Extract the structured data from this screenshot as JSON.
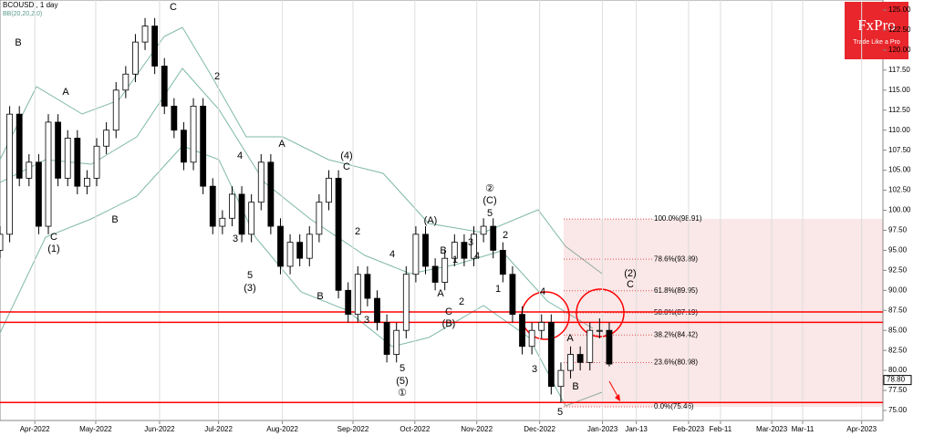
{
  "chart_data": {
    "type": "candlestick",
    "title": "BCOUSD , 1 day",
    "subtitle": "BB(20,20,2.0)",
    "brand": "FxPro",
    "tagline": "Trade Like a Pro",
    "x": [
      0,
      1,
      2,
      3,
      4,
      5,
      6,
      7,
      8,
      9,
      10,
      11,
      12,
      13,
      14,
      15,
      16,
      17,
      18,
      19,
      20,
      21,
      22,
      23,
      24,
      25,
      26,
      27,
      28,
      29,
      30,
      31,
      32,
      33,
      34,
      35,
      36,
      37,
      38,
      39,
      40,
      41,
      42,
      43,
      44,
      45,
      46,
      47,
      48,
      49,
      50,
      51,
      52,
      53,
      54,
      55,
      56,
      57,
      58,
      59,
      60,
      61,
      62,
      63
    ],
    "open": [
      95,
      97,
      112,
      104,
      106,
      98,
      111,
      104,
      109,
      103,
      104,
      108,
      110,
      115,
      117,
      121,
      123,
      118,
      113,
      110,
      106,
      113,
      103,
      98,
      99,
      102,
      97,
      101,
      106,
      98,
      93,
      96,
      94,
      97,
      101,
      104,
      90,
      87,
      92,
      89,
      86,
      82,
      85,
      92,
      97,
      93,
      91,
      94,
      96,
      94,
      97,
      98,
      95,
      92,
      87,
      83,
      85,
      86,
      78,
      80,
      82,
      81,
      85,
      85
    ],
    "high": [
      98,
      113,
      113,
      107,
      107,
      112,
      112,
      110,
      110,
      105,
      109,
      111,
      116,
      118,
      122,
      124,
      124,
      119,
      114,
      111,
      114,
      114,
      104,
      100,
      103,
      103,
      102,
      107,
      107,
      99,
      97,
      97,
      98,
      102,
      105,
      105,
      91,
      93,
      93,
      90,
      87,
      86,
      93,
      98,
      98,
      94,
      95,
      97,
      97,
      98,
      99,
      99,
      96,
      93,
      88,
      86,
      87,
      87,
      81,
      83,
      83,
      86,
      86.5,
      86
    ],
    "low": [
      94,
      96,
      103,
      103,
      97,
      97,
      103,
      103,
      102,
      102,
      103,
      107,
      109,
      114,
      116,
      120,
      117,
      112,
      109,
      105,
      105,
      102,
      97,
      97,
      98,
      96,
      96,
      100,
      97,
      92,
      92,
      93,
      93,
      96,
      100,
      89,
      86,
      86,
      88,
      85,
      81,
      81,
      84,
      91,
      92,
      90,
      90,
      93,
      93,
      93,
      96,
      94,
      91,
      86,
      82,
      82,
      84,
      77,
      76,
      79,
      80,
      80,
      84,
      80.5
    ],
    "close": [
      97,
      112,
      104,
      106,
      98,
      111,
      104,
      109,
      103,
      104,
      108,
      110,
      115,
      117,
      121,
      123,
      118,
      113,
      110,
      106,
      113,
      103,
      98,
      99,
      102,
      97,
      101,
      106,
      98,
      93,
      96,
      94,
      97,
      101,
      104,
      90,
      87,
      92,
      89,
      86,
      82,
      85,
      92,
      97,
      93,
      91,
      94,
      96,
      94,
      97,
      98,
      95,
      92,
      87,
      83,
      85,
      86,
      78,
      80,
      82,
      81,
      85,
      85,
      80.8
    ],
    "up_color": "#ffffff",
    "down_color": "#000000",
    "xlim": [
      0,
      91.3
    ],
    "xticks": [
      {
        "value": 3.6,
        "label": "Apr-2022"
      },
      {
        "value": 9.9,
        "label": "May-2022"
      },
      {
        "value": 16.5,
        "label": "Jun-2022"
      },
      {
        "value": 22.6,
        "label": "Jul-2022"
      },
      {
        "value": 29.2,
        "label": "Aug-2022"
      },
      {
        "value": 36.5,
        "label": "Sep-2022"
      },
      {
        "value": 42.9,
        "label": "Oct-2022"
      },
      {
        "value": 49.3,
        "label": "Nov-2022"
      },
      {
        "value": 55.8,
        "label": "Dec-2022"
      },
      {
        "value": 62.3,
        "label": "Jan-2023"
      },
      {
        "value": 65.8,
        "label": "Jan-13"
      },
      {
        "value": 71.2,
        "label": "Feb-2023"
      },
      {
        "value": 74.5,
        "label": "Feb-11"
      },
      {
        "value": 79.8,
        "label": "Mar-2023"
      },
      {
        "value": 83,
        "label": "Mar-11"
      },
      {
        "value": 89.1,
        "label": "Apr-2023"
      }
    ],
    "ylim": [
      75,
      125
    ],
    "yticks": [
      {
        "value": 125,
        "label": "125.00"
      },
      {
        "value": 122.5,
        "label": "122.50"
      },
      {
        "value": 120,
        "label": "120.00"
      },
      {
        "value": 117.5,
        "label": "117.50"
      },
      {
        "value": 115,
        "label": "115.00"
      },
      {
        "value": 112.5,
        "label": "112.50"
      },
      {
        "value": 110,
        "label": "110.00"
      },
      {
        "value": 107.5,
        "label": "107.50"
      },
      {
        "value": 105,
        "label": "105.00"
      },
      {
        "value": 102.5,
        "label": "102.50"
      },
      {
        "value": 100,
        "label": "100.00"
      },
      {
        "value": 97.5,
        "label": "97.50"
      },
      {
        "value": 95,
        "label": "95.00"
      },
      {
        "value": 92.5,
        "label": "92.50"
      },
      {
        "value": 90,
        "label": "90.00"
      },
      {
        "value": 87.5,
        "label": "87.50"
      },
      {
        "value": 85,
        "label": "85.00"
      },
      {
        "value": 82.5,
        "label": "82.50"
      },
      {
        "value": 80,
        "label": "80.00"
      },
      {
        "value": 77.5,
        "label": "77.50"
      },
      {
        "value": 75,
        "label": "75.00"
      }
    ],
    "last_price": {
      "value": 78.8,
      "label": "78.80"
    },
    "levels": [
      87.3,
      86,
      76
    ],
    "level_color": "#ff0000",
    "fib": [
      {
        "value": 98.91,
        "label": "100.0%(98.91)"
      },
      {
        "value": 93.89,
        "label": "78.6%(93.89)"
      },
      {
        "value": 89.95,
        "label": "61.8%(89.95)"
      },
      {
        "value": 87.19,
        "label": "50.0%(87.19)"
      },
      {
        "value": 84.42,
        "label": "38.2%(84.42)"
      },
      {
        "value": 80.98,
        "label": "23.6%(80.98)"
      },
      {
        "value": 75.46,
        "label": "0.0%(75.46)"
      }
    ],
    "annotations": [
      "B",
      "A",
      "C",
      "(1)",
      "B",
      "C",
      "2",
      "1",
      "4",
      "3",
      "5",
      "(3)",
      "A",
      "(4)",
      "C",
      "2",
      "4",
      "3",
      "5",
      "(5)",
      "①",
      "B",
      "(A)",
      "B",
      "1",
      "3",
      "4",
      "2",
      "A",
      "C",
      "(B)",
      "②",
      "(C)",
      "5",
      "2",
      "1",
      "4",
      "3",
      "5",
      "(2)",
      "C",
      "A",
      "B"
    ]
  }
}
